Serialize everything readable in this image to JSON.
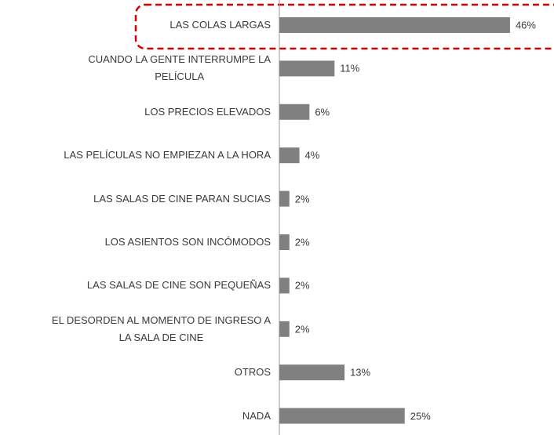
{
  "chart_data": {
    "type": "bar",
    "categories": [
      "LAS COLAS LARGAS",
      "CUANDO LA GENTE INTERRUMPE LA\nPELÍCULA",
      "LOS PRECIOS ELEVADOS",
      "LAS PELÍCULAS NO EMPIEZAN A LA HORA",
      "LAS SALAS DE CINE PARAN SUCIAS",
      "LOS ASIENTOS SON INCÓMODOS",
      "LAS SALAS DE CINE SON PEQUEÑAS",
      "EL DESORDEN AL MOMENTO DE INGRESO A\nLA SALA DE CINE",
      "OTROS",
      "NADA"
    ],
    "values": [
      46,
      11,
      6,
      4,
      2,
      2,
      2,
      2,
      13,
      25
    ],
    "value_labels": [
      "46%",
      "11%",
      "6%",
      "4%",
      "2%",
      "2%",
      "2%",
      "2%",
      "13%",
      "25%"
    ],
    "color": "#808080"
  }
}
